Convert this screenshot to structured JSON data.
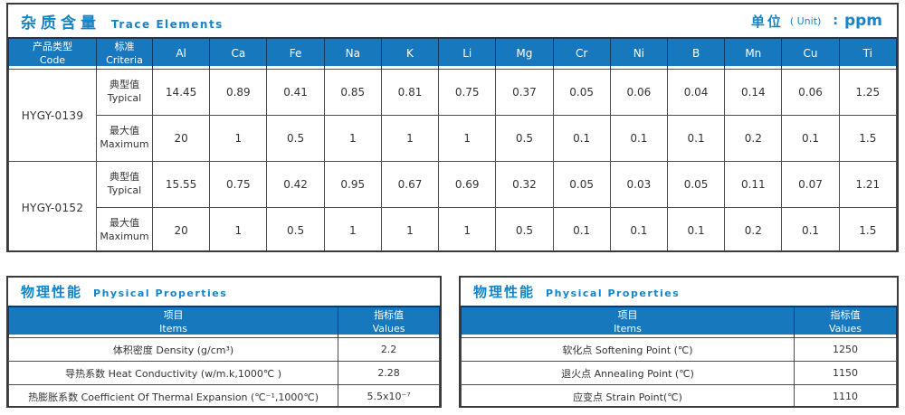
{
  "colors": {
    "header_blue": "#1878be",
    "title_blue": "#1584c8",
    "outer_border": "#3a3a3a",
    "grid_line": "#4d4d4d",
    "header_separator_navy": "#17375e",
    "text_dark": "#333333"
  },
  "trace_section": {
    "title_cn": "杂质含量",
    "title_en": "Trace Elements",
    "unit_label_cn": "单位",
    "unit_label_en": "( Unit)",
    "unit_colon": ":",
    "unit_value": "ppm",
    "header": {
      "code_cn": "产品类型",
      "code_en": "Code",
      "criteria_cn": "标准",
      "criteria_en": "Criteria",
      "elements": [
        "Al",
        "Ca",
        "Fe",
        "Na",
        "K",
        "Li",
        "Mg",
        "Cr",
        "Ni",
        "B",
        "Mn",
        "Cu",
        "Ti"
      ]
    },
    "products": [
      {
        "code": "HYGY-0139",
        "rows": [
          {
            "label_cn": "典型值",
            "label_en": "Typical",
            "values": [
              "14.45",
              "0.89",
              "0.41",
              "0.85",
              "0.81",
              "0.75",
              "0.37",
              "0.05",
              "0.06",
              "0.04",
              "0.14",
              "0.06",
              "1.25"
            ]
          },
          {
            "label_cn": "最大值",
            "label_en": "Maximum",
            "values": [
              "20",
              "1",
              "0.5",
              "1",
              "1",
              "1",
              "0.5",
              "0.1",
              "0.1",
              "0.1",
              "0.2",
              "0.1",
              "1.5"
            ]
          }
        ]
      },
      {
        "code": "HYGY-0152",
        "rows": [
          {
            "label_cn": "典型值",
            "label_en": "Typical",
            "values": [
              "15.55",
              "0.75",
              "0.42",
              "0.95",
              "0.67",
              "0.69",
              "0.32",
              "0.05",
              "0.03",
              "0.05",
              "0.11",
              "0.07",
              "1.21"
            ]
          },
          {
            "label_cn": "最大值",
            "label_en": "Maximum",
            "values": [
              "20",
              "1",
              "0.5",
              "1",
              "1",
              "1",
              "0.5",
              "0.1",
              "0.1",
              "0.1",
              "0.2",
              "0.1",
              "1.5"
            ]
          }
        ]
      }
    ]
  },
  "physical_left": {
    "title_cn": "物理性能",
    "title_en": "Physical Properties",
    "col_items_cn": "项目",
    "col_items_en": "Items",
    "col_values_cn": "指标值",
    "col_values_en": "Values",
    "rows": [
      {
        "item": "体积密度 Density (g/cm³)",
        "value": "2.2"
      },
      {
        "item": "导热系数 Heat Conductivity (w/m.k,1000℃ )",
        "value": "2.28"
      },
      {
        "item": "热膨胀系数 Coefficient Of Thermal Expansion (℃⁻¹,1000℃)",
        "value": "5.5x10⁻⁷"
      }
    ]
  },
  "physical_right": {
    "title_cn": "物理性能",
    "title_en": "Physical Properties",
    "col_items_cn": "项目",
    "col_items_en": "Items",
    "col_values_cn": "指标值",
    "col_values_en": "Values",
    "rows": [
      {
        "item": "软化点 Softening Point (℃)",
        "value": "1250"
      },
      {
        "item": "退火点 Annealing Point (℃)",
        "value": "1150"
      },
      {
        "item": "应变点 Strain Point(℃)",
        "value": "1110"
      }
    ]
  }
}
